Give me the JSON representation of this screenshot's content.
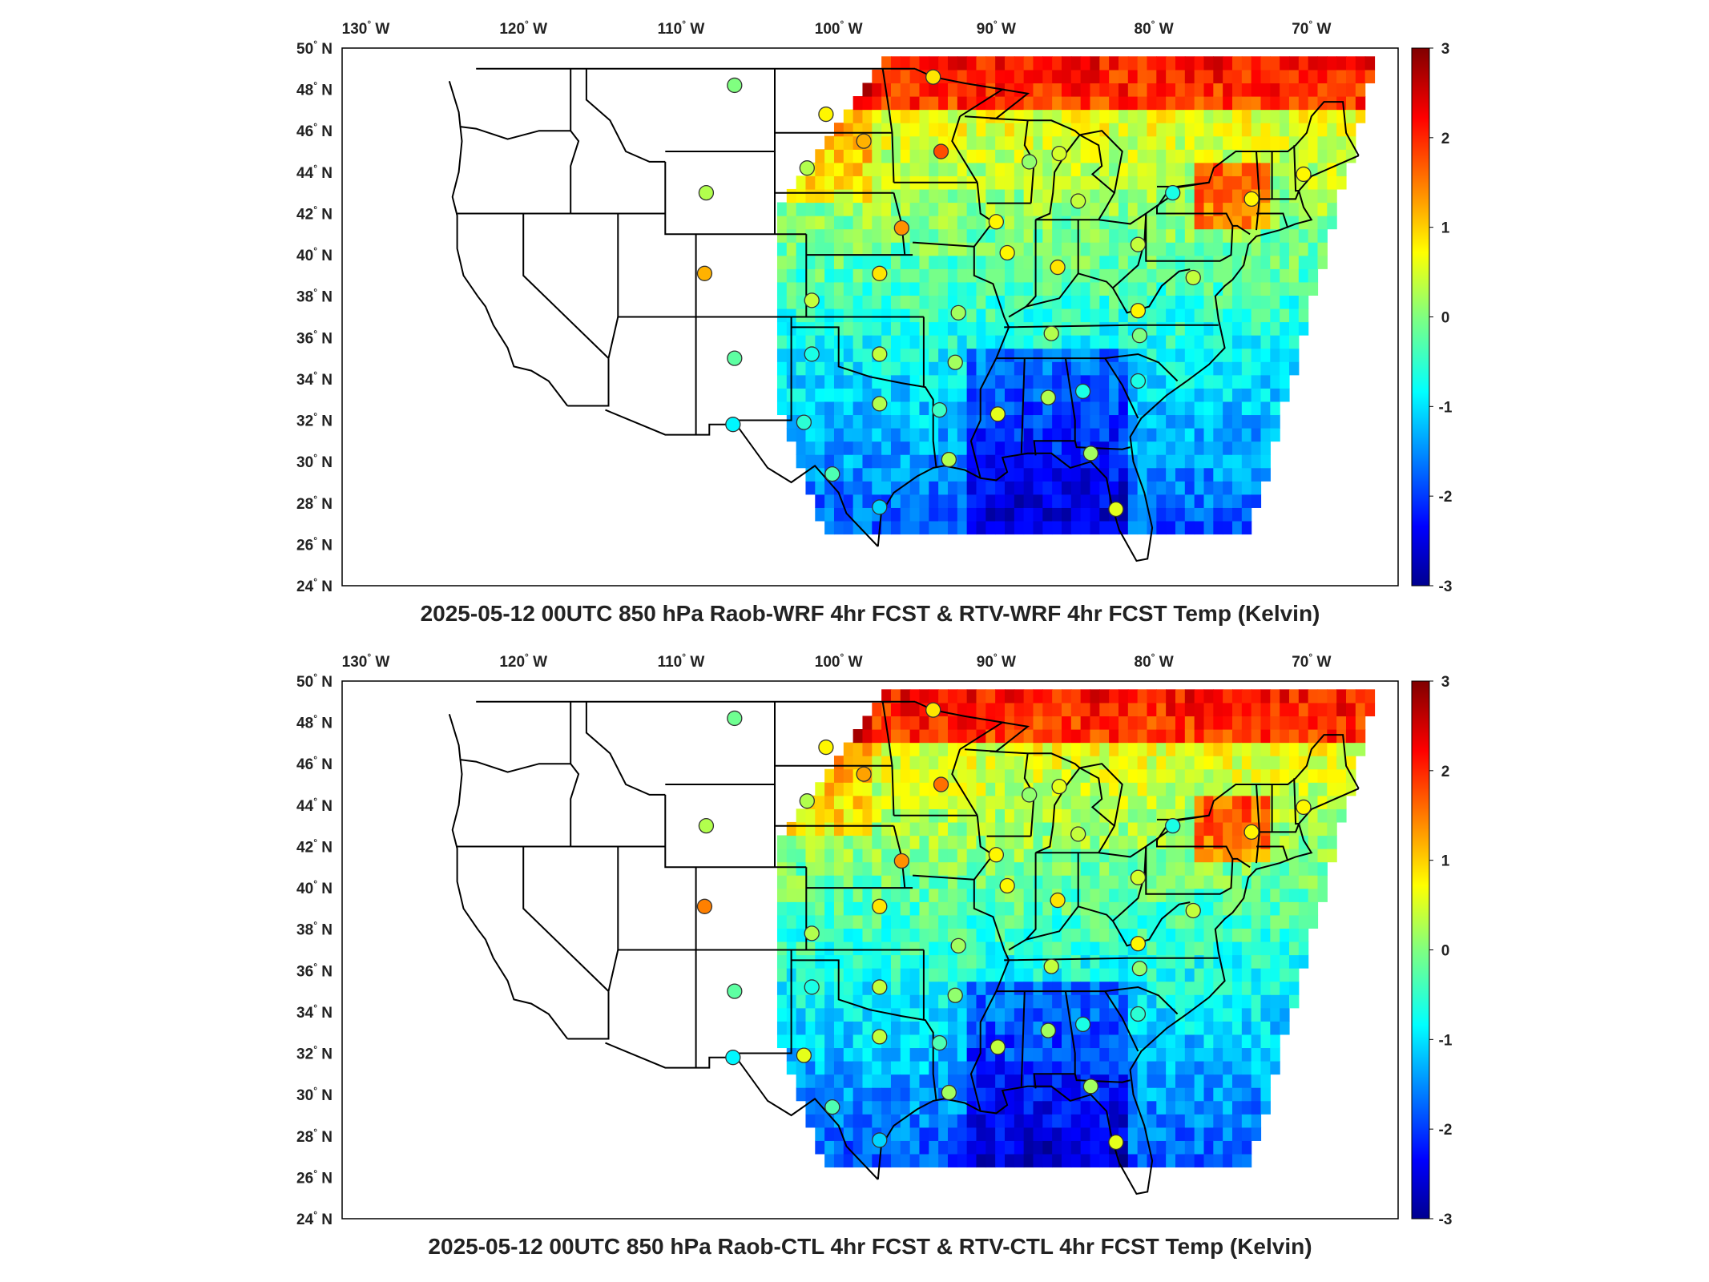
{
  "panels": [
    {
      "id": "top",
      "title": "2025-05-12 00UTC 850 hPa Raob-WRF 4hr FCST & RTV-WRF 4hr FCST Temp (Kelvin)",
      "raob": [
        {
          "lon": -106.6,
          "lat": 48.2,
          "v": 0.0
        },
        {
          "lon": -108.4,
          "lat": 43.0,
          "v": 0.3
        },
        {
          "lon": -102.0,
          "lat": 44.2,
          "v": 0.3
        },
        {
          "lon": -100.8,
          "lat": 46.8,
          "v": 0.8
        },
        {
          "lon": -98.4,
          "lat": 45.5,
          "v": 1.2
        },
        {
          "lon": -94.0,
          "lat": 48.6,
          "v": 0.9
        },
        {
          "lon": -93.5,
          "lat": 45.0,
          "v": 1.8
        },
        {
          "lon": -96.0,
          "lat": 41.3,
          "v": 1.4
        },
        {
          "lon": -108.5,
          "lat": 39.1,
          "v": 1.2
        },
        {
          "lon": -101.7,
          "lat": 37.8,
          "v": 0.4
        },
        {
          "lon": -97.4,
          "lat": 39.1,
          "v": 0.9
        },
        {
          "lon": -106.6,
          "lat": 35.0,
          "v": -0.2
        },
        {
          "lon": -101.7,
          "lat": 35.2,
          "v": -0.6
        },
        {
          "lon": -97.4,
          "lat": 35.2,
          "v": 0.4
        },
        {
          "lon": -97.4,
          "lat": 32.8,
          "v": 0.3
        },
        {
          "lon": -102.2,
          "lat": 31.9,
          "v": -0.5
        },
        {
          "lon": -106.7,
          "lat": 31.8,
          "v": -0.8
        },
        {
          "lon": -100.4,
          "lat": 29.4,
          "v": -0.3
        },
        {
          "lon": -97.4,
          "lat": 27.8,
          "v": -1.0
        },
        {
          "lon": -93.6,
          "lat": 32.5,
          "v": -0.4
        },
        {
          "lon": -92.4,
          "lat": 37.2,
          "v": 0.2
        },
        {
          "lon": -92.6,
          "lat": 34.8,
          "v": 0.2
        },
        {
          "lon": -93.0,
          "lat": 30.1,
          "v": 0.3
        },
        {
          "lon": -89.9,
          "lat": 32.3,
          "v": 0.6
        },
        {
          "lon": -86.7,
          "lat": 33.1,
          "v": 0.3
        },
        {
          "lon": -84.5,
          "lat": 33.4,
          "v": -0.6
        },
        {
          "lon": -86.5,
          "lat": 36.2,
          "v": 0.3
        },
        {
          "lon": -89.3,
          "lat": 40.1,
          "v": 0.8
        },
        {
          "lon": -90.0,
          "lat": 41.6,
          "v": 0.8
        },
        {
          "lon": -87.9,
          "lat": 44.5,
          "v": 0.1
        },
        {
          "lon": -86.0,
          "lat": 44.9,
          "v": 0.5
        },
        {
          "lon": -84.8,
          "lat": 42.6,
          "v": 0.4
        },
        {
          "lon": -86.1,
          "lat": 39.4,
          "v": 0.9
        },
        {
          "lon": -81.0,
          "lat": 40.5,
          "v": 0.4
        },
        {
          "lon": -81.0,
          "lat": 37.3,
          "v": 0.8
        },
        {
          "lon": -80.9,
          "lat": 36.1,
          "v": 0.0
        },
        {
          "lon": -81.0,
          "lat": 33.9,
          "v": -0.6
        },
        {
          "lon": -84.0,
          "lat": 30.4,
          "v": 0.2
        },
        {
          "lon": -82.4,
          "lat": 27.7,
          "v": 0.6
        },
        {
          "lon": -78.8,
          "lat": 43.0,
          "v": -0.6
        },
        {
          "lon": -73.8,
          "lat": 42.7,
          "v": 0.8
        },
        {
          "lon": -70.5,
          "lat": 43.9,
          "v": 0.8
        },
        {
          "lon": -77.5,
          "lat": 38.9,
          "v": 0.4
        }
      ]
    },
    {
      "id": "bottom",
      "title": "2025-05-12 00UTC 850 hPa Raob-CTL 4hr FCST & RTV-CTL 4hr FCST Temp (Kelvin)",
      "raob": [
        {
          "lon": -106.6,
          "lat": 48.2,
          "v": -0.1
        },
        {
          "lon": -108.4,
          "lat": 43.0,
          "v": 0.3
        },
        {
          "lon": -102.0,
          "lat": 44.2,
          "v": 0.3
        },
        {
          "lon": -100.8,
          "lat": 46.8,
          "v": 0.8
        },
        {
          "lon": -98.4,
          "lat": 45.5,
          "v": 1.3
        },
        {
          "lon": -94.0,
          "lat": 48.6,
          "v": 0.9
        },
        {
          "lon": -93.5,
          "lat": 45.0,
          "v": 1.6
        },
        {
          "lon": -96.0,
          "lat": 41.3,
          "v": 1.4
        },
        {
          "lon": -108.5,
          "lat": 39.1,
          "v": 1.5
        },
        {
          "lon": -101.7,
          "lat": 37.8,
          "v": 0.3
        },
        {
          "lon": -97.4,
          "lat": 39.1,
          "v": 0.9
        },
        {
          "lon": -106.6,
          "lat": 35.0,
          "v": -0.2
        },
        {
          "lon": -101.7,
          "lat": 35.2,
          "v": -0.6
        },
        {
          "lon": -97.4,
          "lat": 35.2,
          "v": 0.4
        },
        {
          "lon": -97.4,
          "lat": 32.8,
          "v": 0.4
        },
        {
          "lon": -102.2,
          "lat": 31.9,
          "v": 0.6
        },
        {
          "lon": -106.7,
          "lat": 31.8,
          "v": -0.8
        },
        {
          "lon": -100.4,
          "lat": 29.4,
          "v": -0.3
        },
        {
          "lon": -97.4,
          "lat": 27.8,
          "v": -1.0
        },
        {
          "lon": -93.6,
          "lat": 32.5,
          "v": -0.3
        },
        {
          "lon": -92.4,
          "lat": 37.2,
          "v": 0.2
        },
        {
          "lon": -92.6,
          "lat": 34.8,
          "v": 0.1
        },
        {
          "lon": -93.0,
          "lat": 30.1,
          "v": 0.2
        },
        {
          "lon": -89.9,
          "lat": 32.3,
          "v": 0.4
        },
        {
          "lon": -86.7,
          "lat": 33.1,
          "v": 0.2
        },
        {
          "lon": -84.5,
          "lat": 33.4,
          "v": -0.6
        },
        {
          "lon": -86.5,
          "lat": 36.2,
          "v": 0.4
        },
        {
          "lon": -89.3,
          "lat": 40.1,
          "v": 0.8
        },
        {
          "lon": -90.0,
          "lat": 41.6,
          "v": 0.8
        },
        {
          "lon": -87.9,
          "lat": 44.5,
          "v": 0.1
        },
        {
          "lon": -86.0,
          "lat": 44.9,
          "v": 0.6
        },
        {
          "lon": -84.8,
          "lat": 42.6,
          "v": 0.4
        },
        {
          "lon": -86.1,
          "lat": 39.4,
          "v": 0.9
        },
        {
          "lon": -81.0,
          "lat": 40.5,
          "v": 0.5
        },
        {
          "lon": -81.0,
          "lat": 37.3,
          "v": 0.8
        },
        {
          "lon": -80.9,
          "lat": 36.1,
          "v": 0.1
        },
        {
          "lon": -81.0,
          "lat": 33.9,
          "v": -0.5
        },
        {
          "lon": -84.0,
          "lat": 30.4,
          "v": 0.2
        },
        {
          "lon": -82.4,
          "lat": 27.7,
          "v": 0.6
        },
        {
          "lon": -78.8,
          "lat": 43.0,
          "v": -0.6
        },
        {
          "lon": -73.8,
          "lat": 42.7,
          "v": 0.8
        },
        {
          "lon": -70.5,
          "lat": 43.9,
          "v": 0.8
        },
        {
          "lon": -77.5,
          "lat": 38.9,
          "v": 0.4
        }
      ]
    }
  ],
  "lon_ticks": [
    -130,
    -120,
    -110,
    -100,
    -90,
    -80,
    -70
  ],
  "lon_tick_labels": [
    "130",
    "120",
    "110",
    "100",
    "90",
    "80",
    "70"
  ],
  "lon_hemisphere": "W",
  "lat_ticks": [
    24,
    26,
    28,
    30,
    32,
    34,
    36,
    38,
    40,
    42,
    44,
    46,
    48,
    50
  ],
  "lat_tick_labels": [
    "24",
    "26",
    "28",
    "30",
    "32",
    "34",
    "36",
    "38",
    "40",
    "42",
    "44",
    "46",
    "48",
    "50"
  ],
  "lat_hemisphere": "N",
  "degree_symbol": "°",
  "colorbar": {
    "min": -3,
    "max": 3,
    "ticks": [
      3,
      2,
      1,
      0,
      -1,
      -2,
      -3
    ],
    "tick_labels": [
      "3",
      "2",
      "1",
      "0",
      "-1",
      "-2",
      "-3"
    ],
    "colormap": "jet"
  },
  "map_extent": {
    "lon_min": -131.5,
    "lon_max": -64.5,
    "lat_min": 24,
    "lat_max": 50
  },
  "colors": {
    "state_lines": "#000000",
    "frame": "#000000",
    "land_blank": "#ffffff"
  }
}
